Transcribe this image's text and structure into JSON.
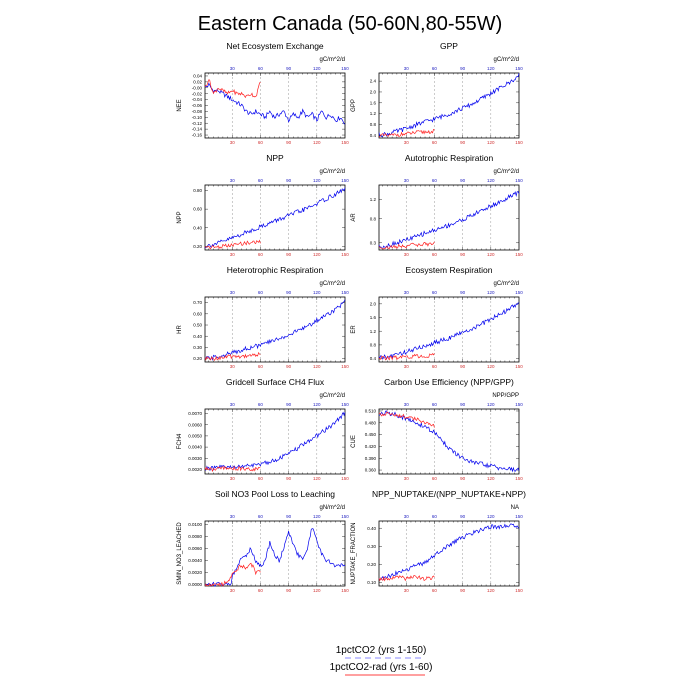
{
  "title": "Eastern Canada (50-60N,80-55W)",
  "colors": {
    "ctrl": "#0000ee",
    "rad": "#ff2020",
    "top_ticks": "#2020c0",
    "bottom_ticks": "#d03030",
    "grid": "#999999"
  },
  "legend": [
    {
      "label": "1pctCO2 (yrs 1-150)",
      "color": "#8888ff",
      "style": "dashed"
    },
    {
      "label": "1pctCO2-rad (yrs 1-60)",
      "color": "#ff4040",
      "style": "solid"
    }
  ],
  "chart_data": [
    {
      "type": "line",
      "title": "Net Ecosystem Exchange",
      "units": "gC/m^2/d",
      "ylabel": "NEE",
      "yticks": [
        "0.04",
        "0.02",
        "-0.00",
        "-0.02",
        "-0.04",
        "-0.06",
        "-0.08",
        "-0.10",
        "-0.12",
        "-0.14",
        "-0.16"
      ],
      "yticks_v": [
        0.04,
        0.02,
        0,
        -0.02,
        -0.04,
        -0.06,
        -0.08,
        -0.1,
        -0.12,
        -0.14,
        -0.16
      ],
      "ylim": [
        -0.17,
        0.05
      ],
      "xlim": [
        1,
        150
      ],
      "xticks_top": [
        "30",
        "60",
        "90",
        "120",
        "150"
      ],
      "xticks_bottom": [
        "30",
        "60",
        "90",
        "120",
        "150"
      ],
      "series": [
        {
          "role": "1pctCO2",
          "x": [
            1,
            5,
            10,
            15,
            20,
            25,
            30,
            35,
            40,
            45,
            50,
            55,
            60,
            65,
            70,
            75,
            80,
            85,
            90,
            95,
            100,
            105,
            110,
            115,
            120,
            125,
            130,
            135,
            140,
            145,
            150
          ],
          "y": [
            0.0,
            0.01,
            -0.01,
            -0.01,
            -0.02,
            -0.03,
            -0.04,
            -0.05,
            -0.06,
            -0.08,
            -0.09,
            -0.08,
            -0.09,
            -0.1,
            -0.08,
            -0.1,
            -0.09,
            -0.08,
            -0.11,
            -0.09,
            -0.1,
            -0.08,
            -0.1,
            -0.09,
            -0.11,
            -0.08,
            -0.1,
            -0.09,
            -0.11,
            -0.1,
            -0.12
          ]
        },
        {
          "role": "1pctCO2-rad",
          "x": [
            1,
            5,
            10,
            15,
            20,
            25,
            30,
            35,
            40,
            45,
            50,
            55,
            60
          ],
          "y": [
            0.0,
            0.03,
            -0.02,
            0.0,
            -0.01,
            -0.02,
            -0.01,
            -0.02,
            -0.02,
            -0.03,
            -0.02,
            -0.03,
            0.02
          ]
        }
      ]
    },
    {
      "type": "line",
      "title": "GPP",
      "units": "gC/m^2/d",
      "ylabel": "GPP",
      "yticks": [
        "2.4",
        "2.0",
        "1.6",
        "1.2",
        "0.8",
        "0.4"
      ],
      "yticks_v": [
        2.4,
        2.0,
        1.6,
        1.2,
        0.8,
        0.4
      ],
      "ylim": [
        0.3,
        2.7
      ],
      "xlim": [
        1,
        150
      ],
      "xticks_top": [
        "30",
        "60",
        "90",
        "120",
        "150"
      ],
      "xticks_bottom": [
        "30",
        "60",
        "90",
        "120",
        "150"
      ],
      "series": [
        {
          "role": "1pctCO2",
          "x": [
            1,
            10,
            20,
            30,
            40,
            50,
            60,
            70,
            80,
            90,
            100,
            110,
            120,
            130,
            140,
            150
          ],
          "y": [
            0.42,
            0.45,
            0.55,
            0.65,
            0.78,
            0.9,
            1.0,
            1.12,
            1.25,
            1.4,
            1.55,
            1.75,
            1.95,
            2.15,
            2.35,
            2.6
          ]
        },
        {
          "role": "1pctCO2-rad",
          "x": [
            1,
            10,
            20,
            30,
            40,
            50,
            60
          ],
          "y": [
            0.4,
            0.38,
            0.42,
            0.45,
            0.5,
            0.52,
            0.55
          ]
        }
      ]
    },
    {
      "type": "line",
      "title": "NPP",
      "units": "gC/m^2/d",
      "ylabel": "NPP",
      "yticks": [
        "0.80",
        "0.60",
        "0.40",
        "0.20"
      ],
      "yticks_v": [
        0.8,
        0.6,
        0.4,
        0.2
      ],
      "ylim": [
        0.16,
        0.86
      ],
      "xlim": [
        1,
        150
      ],
      "xticks_top": [
        "30",
        "60",
        "90",
        "120",
        "150"
      ],
      "xticks_bottom": [
        "30",
        "60",
        "90",
        "120",
        "150"
      ],
      "series": [
        {
          "role": "1pctCO2",
          "x": [
            1,
            10,
            20,
            30,
            40,
            50,
            60,
            70,
            80,
            90,
            100,
            110,
            120,
            130,
            140,
            150
          ],
          "y": [
            0.2,
            0.22,
            0.25,
            0.29,
            0.33,
            0.37,
            0.41,
            0.45,
            0.49,
            0.53,
            0.57,
            0.61,
            0.66,
            0.71,
            0.76,
            0.82
          ]
        },
        {
          "role": "1pctCO2-rad",
          "x": [
            1,
            10,
            20,
            30,
            40,
            50,
            60
          ],
          "y": [
            0.2,
            0.19,
            0.2,
            0.21,
            0.23,
            0.24,
            0.25
          ]
        }
      ]
    },
    {
      "type": "line",
      "title": "Autotrophic Respiration",
      "units": "gC/m^2/d",
      "ylabel": "AR",
      "yticks": [
        "1.2",
        "0.8",
        "0.3"
      ],
      "yticks_v": [
        1.2,
        0.8,
        0.3
      ],
      "ylim": [
        0.15,
        1.5
      ],
      "xlim": [
        1,
        150
      ],
      "xticks_top": [
        "30",
        "60",
        "90",
        "120",
        "150"
      ],
      "xticks_bottom": [
        "30",
        "60",
        "90",
        "120",
        "150"
      ],
      "series": [
        {
          "role": "1pctCO2",
          "x": [
            1,
            10,
            20,
            30,
            40,
            50,
            60,
            70,
            80,
            90,
            100,
            110,
            120,
            130,
            140,
            150
          ],
          "y": [
            0.22,
            0.24,
            0.3,
            0.36,
            0.42,
            0.5,
            0.56,
            0.63,
            0.7,
            0.78,
            0.87,
            0.97,
            1.06,
            1.15,
            1.25,
            1.35
          ]
        },
        {
          "role": "1pctCO2-rad",
          "x": [
            1,
            10,
            20,
            30,
            40,
            50,
            60
          ],
          "y": [
            0.21,
            0.2,
            0.22,
            0.24,
            0.26,
            0.27,
            0.29
          ]
        }
      ]
    },
    {
      "type": "line",
      "title": "Heterotrophic Respiration",
      "units": "gC/m^2/d",
      "ylabel": "HR",
      "yticks": [
        "0.70",
        "0.60",
        "0.50",
        "0.40",
        "0.30",
        "0.20"
      ],
      "yticks_v": [
        0.7,
        0.6,
        0.5,
        0.4,
        0.3,
        0.2
      ],
      "ylim": [
        0.17,
        0.75
      ],
      "xlim": [
        1,
        150
      ],
      "xticks_top": [
        "30",
        "60",
        "90",
        "120",
        "150"
      ],
      "xticks_bottom": [
        "30",
        "60",
        "90",
        "120",
        "150"
      ],
      "series": [
        {
          "role": "1pctCO2",
          "x": [
            1,
            10,
            20,
            30,
            40,
            50,
            60,
            70,
            80,
            90,
            100,
            110,
            120,
            130,
            140,
            150
          ],
          "y": [
            0.2,
            0.21,
            0.23,
            0.25,
            0.28,
            0.3,
            0.32,
            0.35,
            0.38,
            0.41,
            0.45,
            0.49,
            0.54,
            0.59,
            0.64,
            0.71
          ]
        },
        {
          "role": "1pctCO2-rad",
          "x": [
            1,
            10,
            20,
            30,
            40,
            50,
            60
          ],
          "y": [
            0.2,
            0.2,
            0.21,
            0.22,
            0.22,
            0.23,
            0.24
          ]
        }
      ]
    },
    {
      "type": "line",
      "title": "Ecosystem Respiration",
      "units": "gC/m^2/d",
      "ylabel": "ER",
      "yticks": [
        "2.0",
        "1.6",
        "1.2",
        "0.8",
        "0.4"
      ],
      "yticks_v": [
        2.0,
        1.6,
        1.2,
        0.8,
        0.4
      ],
      "ylim": [
        0.3,
        2.2
      ],
      "xlim": [
        1,
        150
      ],
      "xticks_top": [
        "30",
        "60",
        "90",
        "120",
        "150"
      ],
      "xticks_bottom": [
        "30",
        "60",
        "90",
        "120",
        "150"
      ],
      "series": [
        {
          "role": "1pctCO2",
          "x": [
            1,
            10,
            20,
            30,
            40,
            50,
            60,
            70,
            80,
            90,
            100,
            110,
            120,
            130,
            140,
            150
          ],
          "y": [
            0.42,
            0.45,
            0.52,
            0.6,
            0.68,
            0.77,
            0.86,
            0.95,
            1.05,
            1.15,
            1.27,
            1.4,
            1.55,
            1.7,
            1.85,
            2.05
          ]
        },
        {
          "role": "1pctCO2-rad",
          "x": [
            1,
            10,
            20,
            30,
            40,
            50,
            60
          ],
          "y": [
            0.42,
            0.41,
            0.43,
            0.45,
            0.47,
            0.48,
            0.5
          ]
        }
      ]
    },
    {
      "type": "line",
      "title": "Gridcell Surface CH4 Flux",
      "units": "gC/m^2/d",
      "ylabel": "FCH4",
      "yticks": [
        "0.0070",
        "0.0060",
        "0.0050",
        "0.0040",
        "0.0030",
        "0.0020"
      ],
      "yticks_v": [
        0.007,
        0.006,
        0.005,
        0.004,
        0.003,
        0.002
      ],
      "ylim": [
        0.0016,
        0.0074
      ],
      "xlim": [
        1,
        150
      ],
      "xticks_top": [
        "30",
        "60",
        "90",
        "120",
        "150"
      ],
      "xticks_bottom": [
        "30",
        "60",
        "90",
        "120",
        "150"
      ],
      "series": [
        {
          "role": "1pctCO2",
          "x": [
            1,
            10,
            20,
            30,
            40,
            50,
            60,
            70,
            80,
            90,
            100,
            110,
            120,
            130,
            140,
            150
          ],
          "y": [
            0.0021,
            0.0021,
            0.0022,
            0.0022,
            0.0023,
            0.0023,
            0.0025,
            0.0027,
            0.003,
            0.0034,
            0.0039,
            0.0045,
            0.005,
            0.0056,
            0.0062,
            0.0071
          ]
        },
        {
          "role": "1pctCO2-rad",
          "x": [
            1,
            10,
            20,
            30,
            40,
            50,
            60
          ],
          "y": [
            0.0021,
            0.002,
            0.0021,
            0.0021,
            0.0021,
            0.002,
            0.0021
          ]
        }
      ]
    },
    {
      "type": "line",
      "title": "Carbon Use Efficiency (NPP/GPP)",
      "units": "NPP/GPP",
      "ylabel": "CUE",
      "yticks": [
        "0.510",
        "0.480",
        "0.450",
        "0.420",
        "0.390",
        "0.360"
      ],
      "yticks_v": [
        0.51,
        0.48,
        0.45,
        0.42,
        0.39,
        0.36
      ],
      "ylim": [
        0.35,
        0.515
      ],
      "xlim": [
        1,
        150
      ],
      "xticks_top": [
        "30",
        "60",
        "90",
        "120",
        "150"
      ],
      "xticks_bottom": [
        "30",
        "60",
        "90",
        "120",
        "150"
      ],
      "series": [
        {
          "role": "1pctCO2",
          "x": [
            1,
            10,
            20,
            30,
            40,
            50,
            60,
            70,
            80,
            90,
            100,
            110,
            120,
            130,
            140,
            150
          ],
          "y": [
            0.502,
            0.505,
            0.5,
            0.49,
            0.48,
            0.47,
            0.455,
            0.43,
            0.405,
            0.39,
            0.38,
            0.375,
            0.37,
            0.365,
            0.362,
            0.36
          ]
        },
        {
          "role": "1pctCO2-rad",
          "x": [
            1,
            10,
            20,
            30,
            40,
            50,
            60
          ],
          "y": [
            0.5,
            0.505,
            0.5,
            0.495,
            0.49,
            0.48,
            0.47
          ]
        }
      ]
    },
    {
      "type": "line",
      "title": "Soil NO3 Pool Loss to Leaching",
      "units": "gN/m^2/d",
      "ylabel": "SMIN_NO3_LEACHED",
      "yticks": [
        "0.0100",
        "0.0080",
        "0.0060",
        "0.0040",
        "0.0020",
        "0.0000"
      ],
      "yticks_v": [
        0.01,
        0.008,
        0.006,
        0.004,
        0.002,
        0
      ],
      "ylim": [
        -0.0003,
        0.0106
      ],
      "xlim": [
        1,
        150
      ],
      "xticks_top": [
        "30",
        "60",
        "90",
        "120",
        "150"
      ],
      "xticks_bottom": [
        "30",
        "60",
        "90",
        "120",
        "150"
      ],
      "series": [
        {
          "role": "1pctCO2",
          "x": [
            1,
            10,
            20,
            28,
            32,
            38,
            45,
            50,
            55,
            60,
            65,
            70,
            75,
            80,
            85,
            90,
            95,
            100,
            105,
            110,
            115,
            120,
            125,
            130,
            140,
            150
          ],
          "y": [
            0.0,
            0.0,
            0.0,
            0.0,
            0.002,
            0.004,
            0.005,
            0.006,
            0.004,
            0.003,
            0.004,
            0.007,
            0.005,
            0.004,
            0.006,
            0.0088,
            0.0065,
            0.005,
            0.004,
            0.006,
            0.0095,
            0.0075,
            0.005,
            0.004,
            0.0032,
            0.003
          ]
        },
        {
          "role": "1pctCO2-rad",
          "x": [
            1,
            10,
            20,
            28,
            32,
            38,
            45,
            50,
            55,
            60
          ],
          "y": [
            0.0,
            0.0,
            0.0,
            0.001,
            0.002,
            0.003,
            0.0028,
            0.0035,
            0.002,
            0.002
          ]
        }
      ]
    },
    {
      "type": "line",
      "title": "NPP_NUPTAKE/(NPP_NUPTAKE+NPP)",
      "units": "NA",
      "ylabel": "NUPTAKE_FRACTION",
      "yticks": [
        "0.40",
        "0.30",
        "0.20",
        "0.10"
      ],
      "yticks_v": [
        0.4,
        0.3,
        0.2,
        0.1
      ],
      "ylim": [
        0.08,
        0.44
      ],
      "xlim": [
        1,
        150
      ],
      "xticks_top": [
        "30",
        "60",
        "90",
        "120",
        "150"
      ],
      "xticks_bottom": [
        "30",
        "60",
        "90",
        "120",
        "150"
      ],
      "series": [
        {
          "role": "1pctCO2",
          "x": [
            1,
            10,
            20,
            30,
            40,
            50,
            60,
            70,
            80,
            90,
            100,
            110,
            120,
            130,
            140,
            150
          ],
          "y": [
            0.12,
            0.13,
            0.15,
            0.17,
            0.19,
            0.21,
            0.25,
            0.29,
            0.32,
            0.35,
            0.37,
            0.39,
            0.41,
            0.41,
            0.42,
            0.4
          ]
        },
        {
          "role": "1pctCO2-rad",
          "x": [
            1,
            10,
            20,
            30,
            40,
            50,
            60
          ],
          "y": [
            0.12,
            0.12,
            0.13,
            0.12,
            0.13,
            0.12,
            0.13
          ]
        }
      ]
    }
  ]
}
